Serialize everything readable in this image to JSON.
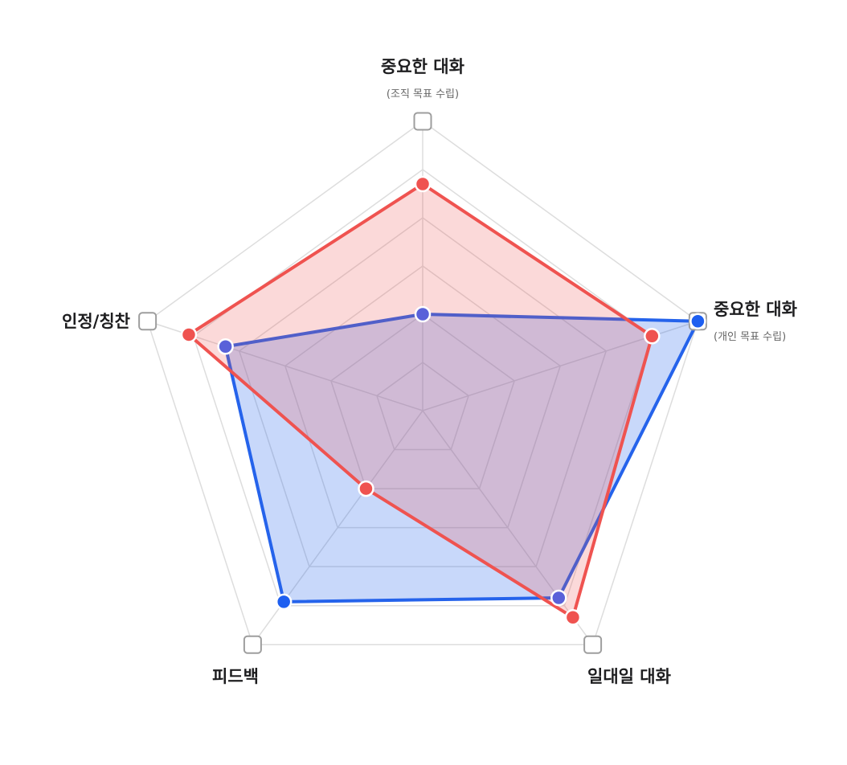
{
  "chart_data": {
    "type": "radar",
    "axes": [
      {
        "title": "중요한 대화",
        "subtitle": "(조직 목표 수립)"
      },
      {
        "title": "중요한 대화",
        "subtitle": "(개인 목표 수립)"
      },
      {
        "title": "일대일 대화",
        "subtitle": ""
      },
      {
        "title": "피드백",
        "subtitle": ""
      },
      {
        "title": "인정/칭찬",
        "subtitle": ""
      }
    ],
    "rlim": [
      0,
      6
    ],
    "ring_count": 6,
    "series": [
      {
        "values": [
          2.0,
          6.0,
          4.8,
          4.9,
          4.3
        ],
        "stroke": "#2563eb",
        "fill": "rgba(37, 99, 235, 0.25)",
        "marker": "#1e5ff0"
      },
      {
        "values": [
          4.7,
          5.0,
          5.3,
          2.0,
          5.1
        ],
        "stroke": "#ef5350",
        "fill": "rgba(239, 83, 80, 0.22)",
        "marker": "#ef5350"
      }
    ],
    "overlap_marker_color": "#5961d9",
    "grid": true,
    "axis_end_markers": "hollow-square",
    "colors": {
      "grid": "#dddddd",
      "axis_end_stroke": "#9e9e9e"
    }
  }
}
